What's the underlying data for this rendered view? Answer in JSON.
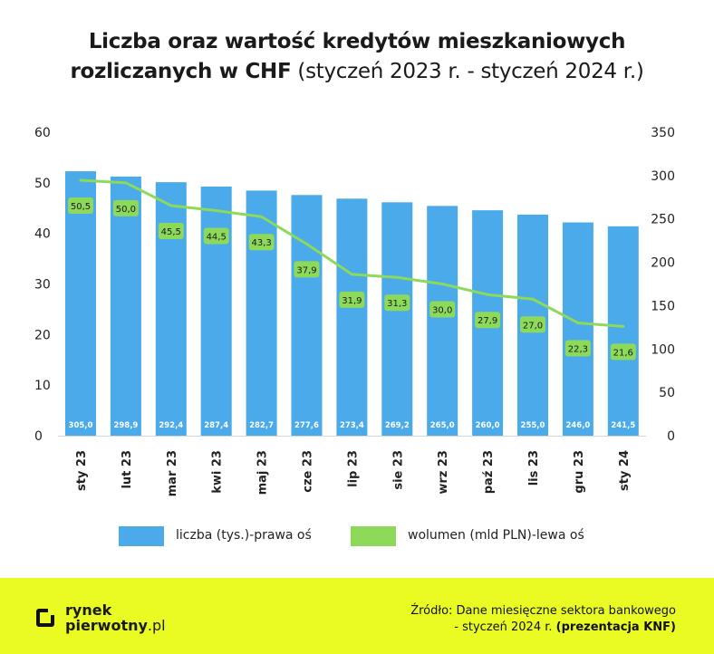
{
  "title": {
    "line1": "Liczba oraz wartość kredytów mieszkaniowych",
    "line2_bold": "rozliczanych w CHF",
    "line2_light": " (styczeń 2023 r. - styczeń 2024 r.)"
  },
  "legend": {
    "bar_label": "liczba (tys.)-prawa oś",
    "line_label": "wolumen (mld PLN)-lewa oś"
  },
  "footer": {
    "logo_line1": "rynek",
    "logo_line2_bold": "pierwotny",
    "logo_line2_suffix": ".pl",
    "source_line1": "Źródło: Dane miesięczne sektora bankowego",
    "source_line2": "- styczeń 2024 r. ",
    "source_line2_bold": "(prezentacja KNF)"
  },
  "colors": {
    "bar": "#4aaaea",
    "line": "#8dd95a",
    "footer_bg": "#e9fb22"
  },
  "chart_data": {
    "type": "bar",
    "categories": [
      "sty 23",
      "lut 23",
      "mar 23",
      "kwi 23",
      "maj 23",
      "cze 23",
      "lip 23",
      "sie 23",
      "wrz 23",
      "paź 23",
      "lis 23",
      "gru 23",
      "sty 24"
    ],
    "series": [
      {
        "type": "bar",
        "axis": "right",
        "values": [
          305.0,
          298.9,
          292.4,
          287.4,
          282.7,
          277.6,
          273.4,
          269.2,
          265.0,
          260.0,
          255.0,
          246.0,
          241.5
        ],
        "labels": [
          "305,0",
          "298,9",
          "292,4",
          "287,4",
          "282,7",
          "277,6",
          "273,4",
          "269,2",
          "265,0",
          "260,0",
          "255,0",
          "246,0",
          "241,5"
        ]
      },
      {
        "type": "line",
        "axis": "left",
        "values": [
          50.5,
          50.0,
          45.5,
          44.5,
          43.3,
          37.9,
          31.9,
          31.3,
          30.0,
          27.9,
          27.0,
          22.3,
          21.6
        ],
        "labels": [
          "50,5",
          "50,0",
          "45,5",
          "44,5",
          "43,3",
          "37,9",
          "31,9",
          "31,3",
          "30,0",
          "27,9",
          "27,0",
          "22,3",
          "21,6"
        ]
      }
    ],
    "left_axis": {
      "range": [
        0,
        60
      ],
      "ticks": [
        "0",
        "10",
        "20",
        "30",
        "40",
        "50",
        "60"
      ]
    },
    "right_axis": {
      "range": [
        0,
        350
      ],
      "ticks": [
        "0",
        "50",
        "100",
        "150",
        "200",
        "250",
        "300",
        "350"
      ]
    },
    "grid": false,
    "legend_position": "bottom"
  }
}
